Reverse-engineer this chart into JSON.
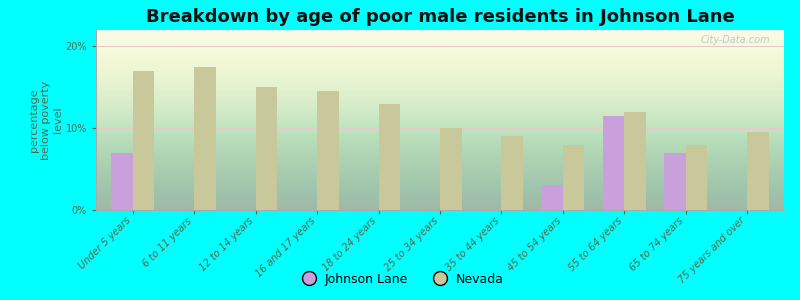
{
  "title": "Breakdown by age of poor male residents in Johnson Lane",
  "ylabel": "percentage\nbelow poverty\nlevel",
  "categories": [
    "Under 5 years",
    "6 to 11 years",
    "12 to 14 years",
    "16 and 17 years",
    "18 to 24 years",
    "25 to 34 years",
    "35 to 44 years",
    "45 to 54 years",
    "55 to 64 years",
    "65 to 74 years",
    "75 years and over"
  ],
  "johnson_lane": [
    7.0,
    0.0,
    0.0,
    0.0,
    0.0,
    0.0,
    0.0,
    3.0,
    11.5,
    7.0,
    0.0
  ],
  "nevada": [
    17.0,
    17.5,
    15.0,
    14.5,
    13.0,
    10.0,
    9.0,
    8.0,
    12.0,
    8.0,
    9.5
  ],
  "johnson_lane_color": "#c9a0dc",
  "nevada_color": "#c8c89a",
  "background_color": "#00ffff",
  "ylim": [
    0,
    22
  ],
  "yticks": [
    0,
    10,
    20
  ],
  "ytick_labels": [
    "0%",
    "10%",
    "20%"
  ],
  "bar_width": 0.35,
  "title_fontsize": 13,
  "axis_label_fontsize": 8,
  "tick_fontsize": 7,
  "legend_fontsize": 9,
  "watermark": "City-Data.com"
}
